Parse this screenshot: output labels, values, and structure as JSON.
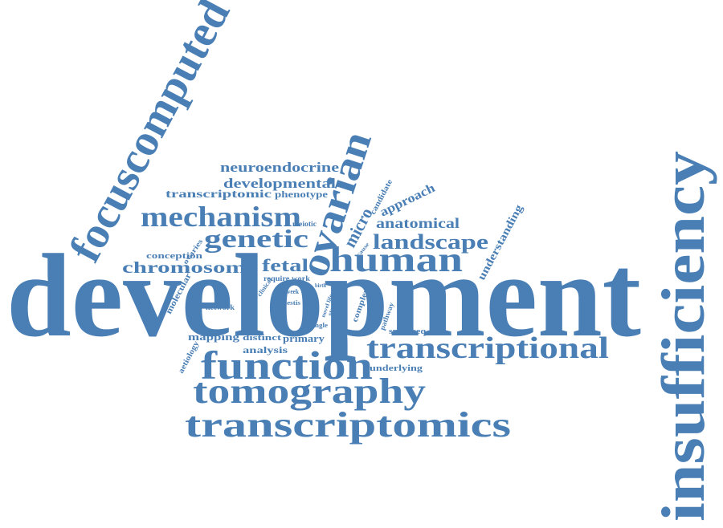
{
  "colors": {
    "word": "#4a7fb5",
    "background": "#ffffff"
  },
  "words": [
    "development",
    "insufficiency",
    "focuscomputed",
    "ovarian",
    "human",
    "transcriptional",
    "function",
    "tomography",
    "transcriptomics",
    "mechanism",
    "genetic",
    "landscape",
    "fetal",
    "chromosome",
    "neuroendocrine",
    "developmental",
    "transcriptomic",
    "phenotype",
    "approach",
    "anatomical",
    "micro",
    "understanding",
    "candidate",
    "conception",
    "meiotic",
    "require work",
    "cause",
    "ovaries",
    "molecular",
    "network",
    "clinical",
    "week",
    "testis",
    "woman",
    "birth",
    "novel life",
    "stage",
    "single",
    "complex",
    "pathway",
    "snrnaseq",
    "mapping",
    "distinct",
    "primary",
    "analysis",
    "underlying",
    "aetiology"
  ]
}
